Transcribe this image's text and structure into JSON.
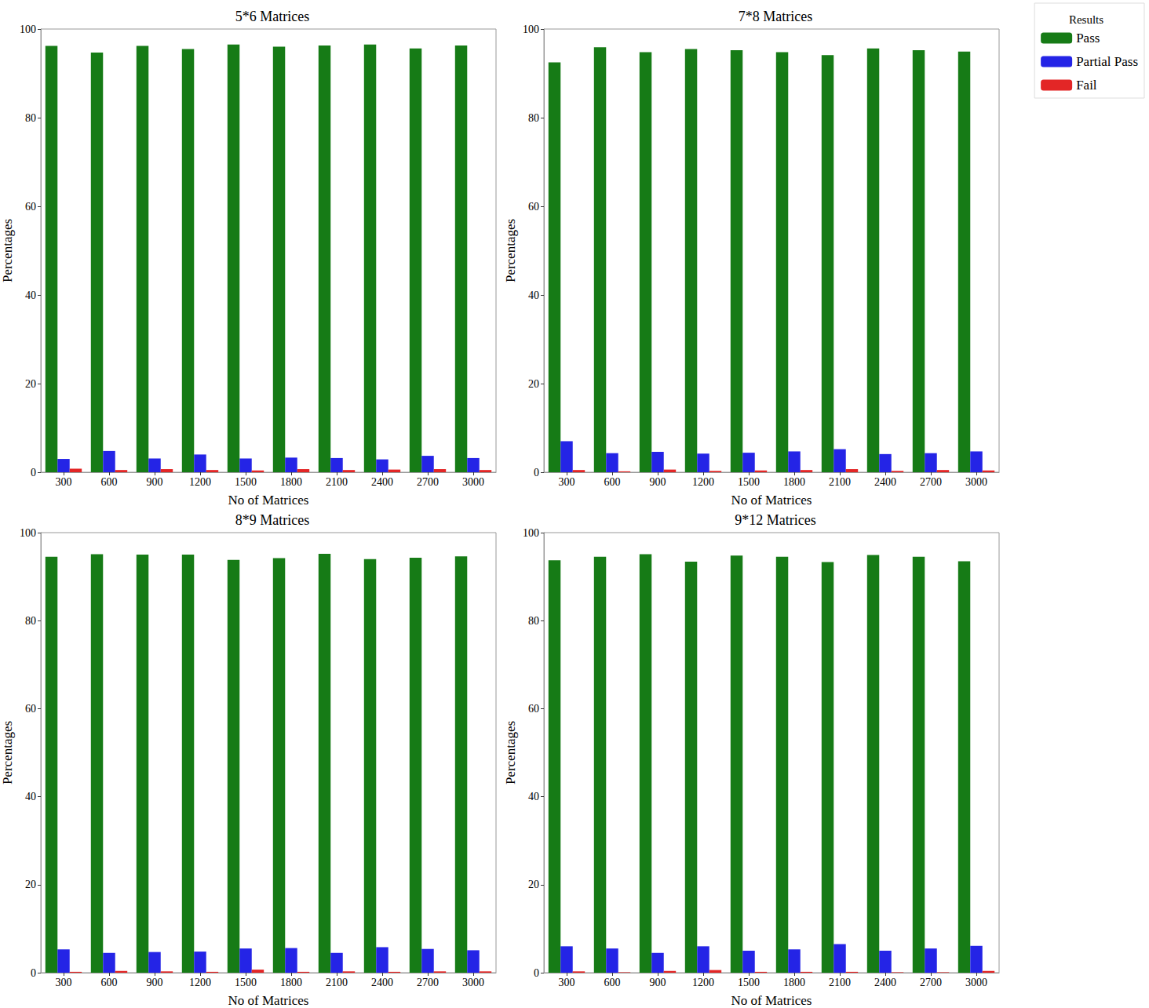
{
  "legend": {
    "title": "Results",
    "position": "upper right"
  },
  "chart_data": [
    {
      "type": "bar",
      "title": "5*6 Matrices",
      "x_label": "No of Matrices",
      "y_label": "Percentages",
      "categories": [
        "300",
        "600",
        "900",
        "1200",
        "1500",
        "1800",
        "2100",
        "2400",
        "2700",
        "3000"
      ],
      "series": [
        {
          "name": "Pass",
          "color": "#167b16",
          "values": [
            96.2,
            94.7,
            96.2,
            95.5,
            96.5,
            96.0,
            96.3,
            96.5,
            95.6,
            96.3
          ]
        },
        {
          "name": "Partial Pass",
          "color": "#2424e6",
          "values": [
            3.0,
            4.8,
            3.1,
            4.0,
            3.1,
            3.3,
            3.2,
            2.9,
            3.7,
            3.2
          ]
        },
        {
          "name": "Fail",
          "color": "#e32626",
          "values": [
            0.8,
            0.5,
            0.7,
            0.5,
            0.4,
            0.7,
            0.5,
            0.6,
            0.7,
            0.5
          ]
        }
      ],
      "ylim": [
        0,
        100
      ],
      "yticks": [
        0,
        20,
        40,
        60,
        80,
        100
      ],
      "grid": false
    },
    {
      "type": "bar",
      "title": "7*8 Matrices",
      "x_label": "No of Matrices",
      "y_label": "Percentages",
      "categories": [
        "300",
        "600",
        "900",
        "1200",
        "1500",
        "1800",
        "2100",
        "2400",
        "2700",
        "3000"
      ],
      "series": [
        {
          "name": "Pass",
          "color": "#167b16",
          "values": [
            92.5,
            95.9,
            94.8,
            95.5,
            95.2,
            94.8,
            94.1,
            95.6,
            95.2,
            94.9
          ]
        },
        {
          "name": "Partial Pass",
          "color": "#2424e6",
          "values": [
            7.0,
            4.3,
            4.6,
            4.2,
            4.4,
            4.7,
            5.2,
            4.1,
            4.3,
            4.7
          ]
        },
        {
          "name": "Fail",
          "color": "#e32626",
          "values": [
            0.5,
            0.2,
            0.6,
            0.3,
            0.4,
            0.5,
            0.7,
            0.3,
            0.5,
            0.4
          ]
        }
      ],
      "ylim": [
        0,
        100
      ],
      "yticks": [
        0,
        20,
        40,
        60,
        80,
        100
      ],
      "grid": false
    },
    {
      "type": "bar",
      "title": "8*9 Matrices",
      "x_label": "No of Matrices",
      "y_label": "Percentages",
      "categories": [
        "300",
        "600",
        "900",
        "1200",
        "1500",
        "1800",
        "2100",
        "2400",
        "2700",
        "3000"
      ],
      "series": [
        {
          "name": "Pass",
          "color": "#167b16",
          "values": [
            94.5,
            95.1,
            95.0,
            95.0,
            93.8,
            94.2,
            95.2,
            94.0,
            94.3,
            94.6
          ]
        },
        {
          "name": "Partial Pass",
          "color": "#2424e6",
          "values": [
            5.3,
            4.5,
            4.7,
            4.8,
            5.5,
            5.6,
            4.5,
            5.8,
            5.4,
            5.1
          ]
        },
        {
          "name": "Fail",
          "color": "#e32626",
          "values": [
            0.2,
            0.4,
            0.3,
            0.2,
            0.7,
            0.2,
            0.3,
            0.2,
            0.3,
            0.3
          ]
        }
      ],
      "ylim": [
        0,
        100
      ],
      "yticks": [
        0,
        20,
        40,
        60,
        80,
        100
      ],
      "grid": false
    },
    {
      "type": "bar",
      "title": "9*12 Matrices",
      "x_label": "No of Matrices",
      "y_label": "Percentages",
      "categories": [
        "300",
        "600",
        "900",
        "1200",
        "1500",
        "1800",
        "2100",
        "2400",
        "2700",
        "3000"
      ],
      "series": [
        {
          "name": "Pass",
          "color": "#167b16",
          "values": [
            93.7,
            94.5,
            95.1,
            93.4,
            94.8,
            94.5,
            93.3,
            94.9,
            94.5,
            93.5
          ]
        },
        {
          "name": "Partial Pass",
          "color": "#2424e6",
          "values": [
            6.0,
            5.5,
            4.5,
            6.0,
            5.0,
            5.3,
            6.5,
            5.0,
            5.5,
            6.1
          ]
        },
        {
          "name": "Fail",
          "color": "#e32626",
          "values": [
            0.3,
            0.1,
            0.4,
            0.6,
            0.2,
            0.2,
            0.2,
            0.1,
            0.1,
            0.4
          ]
        }
      ],
      "ylim": [
        0,
        100
      ],
      "yticks": [
        0,
        20,
        40,
        60,
        80,
        100
      ],
      "grid": false
    }
  ]
}
